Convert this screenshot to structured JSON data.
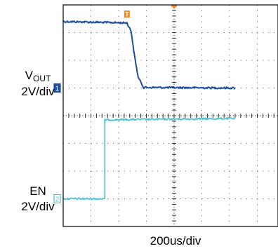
{
  "chart_data": {
    "type": "line",
    "title": "",
    "grid": true,
    "x_unit": "div",
    "x_range": [
      0,
      6.2
    ],
    "y_range": [
      0,
      8
    ],
    "trigger_marker": "T",
    "xlabel": "200us/div",
    "series": [
      {
        "name": "VOUT",
        "label_main": "V",
        "label_sub": "OUT",
        "scale": "2V/div",
        "channel": "1",
        "color": "#1f4e9c",
        "x": [
          0,
          2.3,
          2.45,
          2.55,
          2.7,
          2.9,
          6.2
        ],
        "y": [
          7.4,
          7.35,
          7.05,
          6.3,
          5.4,
          5.02,
          5.0
        ]
      },
      {
        "name": "EN",
        "scale": "2V/div",
        "channel": "2",
        "color": "#4fc3d3",
        "x": [
          0,
          1.5,
          1.5,
          6.2
        ],
        "y": [
          1.0,
          1.0,
          3.85,
          3.9
        ]
      }
    ]
  }
}
